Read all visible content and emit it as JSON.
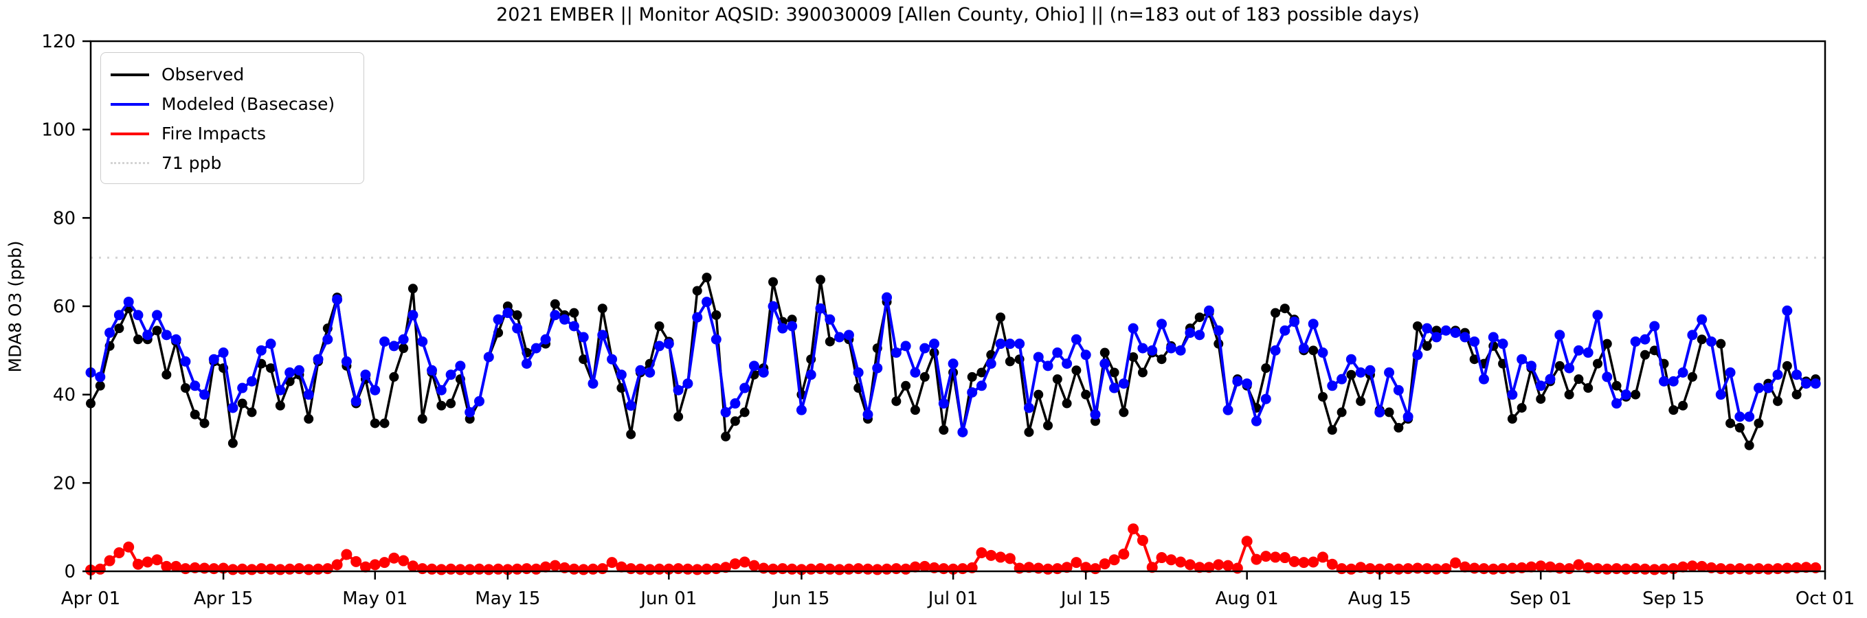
{
  "title": "2021 EMBER || Monitor AQSID: 390030009 [Allen County, Ohio] || (n=183 out of 183 possible days)",
  "y_axis": {
    "label": "MDA8 O3 (ppb)",
    "ticks": [
      0,
      20,
      40,
      60,
      80,
      100,
      120
    ]
  },
  "x_axis": {
    "tick_labels": [
      "Apr 01",
      "Apr 15",
      "May 01",
      "May 15",
      "Jun 01",
      "Jun 15",
      "Jul 01",
      "Jul 15",
      "Aug 01",
      "Aug 15",
      "Sep 01",
      "Sep 15",
      "Oct 01"
    ],
    "tick_days": [
      0,
      14,
      30,
      44,
      61,
      75,
      91,
      105,
      122,
      136,
      153,
      167,
      183
    ]
  },
  "legend": {
    "items": [
      {
        "label": "Observed",
        "color": "#000000",
        "style": "solid"
      },
      {
        "label": "Modeled (Basecase)",
        "color": "#0000ff",
        "style": "solid"
      },
      {
        "label": "Fire Impacts",
        "color": "#ff0000",
        "style": "solid"
      },
      {
        "label": "71 ppb",
        "color": "#d4d4d4",
        "style": "dotted"
      }
    ]
  },
  "chart_data": {
    "type": "line",
    "x_start_label": "Apr 01",
    "x_end_label": "Oct 01",
    "n_days": 183,
    "ylim": [
      0,
      120
    ],
    "grid": false,
    "legend_position": "upper-left",
    "reference_line": {
      "label": "71 ppb",
      "value": 71,
      "color": "#d4d4d4",
      "style": "dotted"
    },
    "series": [
      {
        "name": "Observed",
        "color": "#000000",
        "values": [
          38,
          42,
          51,
          55,
          59.5,
          52.5,
          52.5,
          54.5,
          44.5,
          52,
          41.5,
          35.5,
          33.5,
          47.5,
          46,
          29,
          38,
          36,
          47,
          46,
          37.5,
          43,
          44.5,
          34.5,
          47.5,
          55,
          62,
          46.5,
          38,
          43.5,
          33.5,
          33.5,
          44,
          50.5,
          64,
          34.5,
          45,
          37.5,
          38,
          43.5,
          34.5,
          38.5,
          48.5,
          54,
          60,
          58,
          49.5,
          50.5,
          51.5,
          60.5,
          58,
          58.5,
          48,
          42.5,
          59.5,
          48,
          41.5,
          31,
          45,
          47,
          55.5,
          52,
          35,
          42.5,
          63.5,
          66.5,
          58,
          30.5,
          34,
          36,
          44.5,
          46,
          65.5,
          56.5,
          57,
          40,
          48,
          66,
          52,
          53,
          52.5,
          41.5,
          34.5,
          50.5,
          61,
          38.5,
          42,
          36.5,
          44,
          49.5,
          32,
          45,
          31.5,
          44,
          45,
          49,
          57.5,
          47.5,
          48,
          31.5,
          40,
          33,
          43.5,
          38,
          45.5,
          40,
          34,
          49.5,
          45,
          36,
          48.5,
          45,
          49.5,
          48,
          51,
          50,
          55,
          57.5,
          58.5,
          51.5,
          36.5,
          43.5,
          42,
          37,
          46,
          58.5,
          59.5,
          57,
          50,
          50,
          39.5,
          32,
          36,
          44.5,
          38.5,
          44.5,
          36.5,
          36,
          32.5,
          34.5,
          55.5,
          51,
          54.5,
          54.5,
          54.5,
          54,
          48,
          47,
          51,
          47,
          34.5,
          37,
          46,
          39,
          43,
          46.5,
          40,
          43.5,
          41.5,
          47,
          51.5,
          42,
          39.5,
          40,
          49,
          50,
          47,
          36.5,
          37.5,
          44,
          52.5,
          52,
          51.5,
          33.5,
          32.5,
          28.5,
          33.5,
          42.5,
          38.5,
          46.5,
          40,
          43,
          43.5
        ]
      },
      {
        "name": "Modeled (Basecase)",
        "color": "#0000ff",
        "values": [
          45,
          44,
          54,
          58,
          61,
          58,
          53.5,
          58,
          53.5,
          52.5,
          47.5,
          42,
          40,
          48,
          49.5,
          37,
          41.5,
          43,
          50,
          51.5,
          41,
          45,
          45.5,
          40,
          48,
          52.5,
          61.5,
          47.5,
          38.5,
          44.5,
          41,
          52,
          51,
          52.5,
          58,
          52,
          45.5,
          41,
          44.5,
          46.5,
          36,
          38.5,
          48.5,
          57,
          58.5,
          55,
          47,
          50.5,
          52.5,
          58,
          57,
          55.5,
          53,
          42.5,
          53.5,
          48,
          44.5,
          37.5,
          45.5,
          45,
          51,
          51.5,
          41,
          42.5,
          57.5,
          61,
          52.5,
          36,
          38,
          41.5,
          46.5,
          45,
          60,
          55,
          55.5,
          36.5,
          44.5,
          59.5,
          57,
          53,
          53.5,
          45,
          35.5,
          46,
          62,
          49.5,
          51,
          45,
          50.5,
          51.5,
          38,
          47,
          31.5,
          40.5,
          42,
          47,
          51.5,
          51.5,
          51.5,
          37,
          48.5,
          46.5,
          49.5,
          47,
          52.5,
          49,
          35.5,
          47,
          41.5,
          42.5,
          55,
          50.5,
          50,
          56,
          50.5,
          50,
          54,
          53.5,
          59,
          54.5,
          36.5,
          43,
          42.5,
          34,
          39,
          50,
          54.5,
          56.5,
          50.5,
          56,
          49.5,
          42,
          43.5,
          48,
          45,
          45.5,
          36,
          45,
          41,
          35,
          49,
          55,
          53,
          54.5,
          54,
          53,
          52,
          43.5,
          53,
          51.5,
          40,
          48,
          46.5,
          42,
          43.5,
          53.5,
          46,
          50,
          49.5,
          58,
          44,
          38,
          40,
          52,
          52.5,
          55.5,
          43,
          43,
          45,
          53.5,
          57,
          52,
          40,
          45,
          35,
          35,
          41.5,
          41.5,
          44.5,
          59,
          44.5,
          42.5,
          42.5
        ]
      },
      {
        "name": "Fire Impacts",
        "color": "#ff0000",
        "values": [
          0.3,
          0.5,
          2.4,
          4.2,
          5.5,
          1.6,
          2.1,
          2.6,
          1.1,
          1.1,
          0.6,
          0.8,
          0.7,
          0.6,
          0.7,
          0.4,
          0.5,
          0.4,
          0.6,
          0.5,
          0.4,
          0.5,
          0.6,
          0.4,
          0.5,
          0.6,
          1.5,
          3.8,
          2.2,
          1.0,
          1.5,
          2.0,
          3.0,
          2.4,
          1.2,
          0.6,
          0.5,
          0.4,
          0.5,
          0.4,
          0.4,
          0.5,
          0.4,
          0.5,
          0.4,
          0.5,
          0.6,
          0.5,
          1.0,
          1.3,
          0.8,
          0.5,
          0.4,
          0.5,
          0.6,
          2.0,
          1.0,
          0.6,
          0.5,
          0.4,
          0.5,
          0.5,
          0.6,
          0.5,
          0.4,
          0.5,
          0.6,
          0.9,
          1.7,
          2.1,
          1.3,
          0.7,
          0.5,
          0.6,
          0.5,
          0.4,
          0.5,
          0.6,
          0.5,
          0.4,
          0.5,
          0.6,
          0.5,
          0.4,
          0.5,
          0.6,
          0.5,
          1.0,
          1.1,
          0.8,
          0.6,
          0.5,
          0.6,
          0.8,
          4.2,
          3.6,
          3.2,
          2.9,
          0.7,
          0.9,
          0.7,
          0.5,
          0.6,
          0.9,
          2.0,
          0.9,
          0.6,
          1.7,
          2.6,
          3.9,
          9.6,
          7.0,
          0.9,
          3.1,
          2.6,
          2.1,
          1.5,
          0.9,
          0.9,
          1.5,
          1.3,
          0.7,
          6.8,
          2.7,
          3.4,
          3.2,
          3.1,
          2.2,
          2.0,
          2.1,
          3.2,
          1.6,
          0.6,
          0.5,
          0.9,
          0.6,
          0.5,
          0.6,
          0.5,
          0.6,
          0.7,
          0.6,
          0.5,
          0.6,
          1.9,
          1.0,
          0.7,
          0.6,
          0.5,
          0.6,
          0.7,
          0.8,
          1.0,
          1.2,
          1.0,
          0.7,
          0.6,
          1.5,
          0.8,
          0.6,
          0.5,
          0.6,
          0.5,
          0.6,
          0.5,
          0.4,
          0.5,
          0.6,
          1.0,
          1.2,
          1.1,
          0.8,
          0.6,
          0.5,
          0.6,
          0.5,
          0.6,
          0.5,
          0.6,
          0.7,
          0.8,
          0.9,
          0.8
        ]
      }
    ]
  }
}
